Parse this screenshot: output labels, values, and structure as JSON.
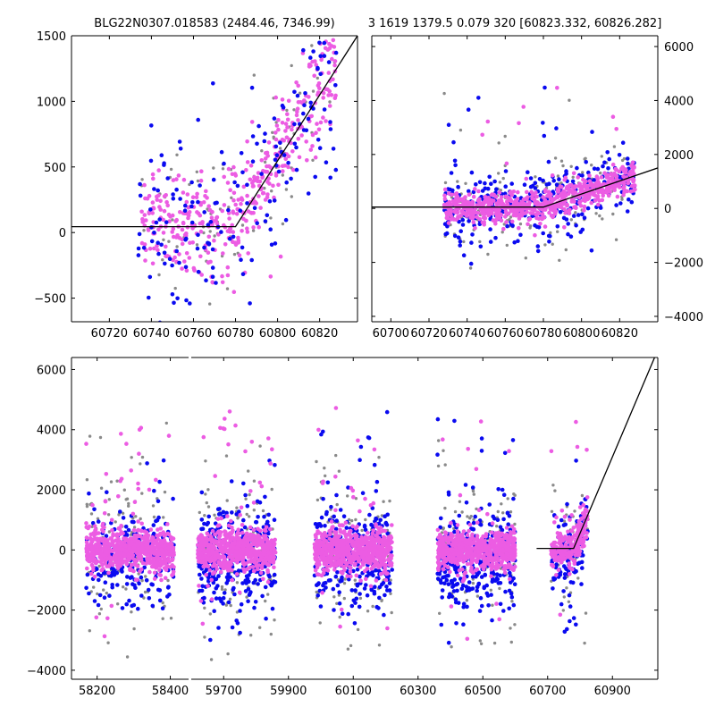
{
  "colors": {
    "series_blue": "#0a0af0",
    "series_pink": "#ec5ce3",
    "series_gray": "#8a8a8a",
    "model_line": "#000000",
    "background": "#ffffff"
  },
  "chart_data": [
    {
      "id": "top-left",
      "type": "scatter",
      "title": "BLG22N0307.018583 (2484.46, 7346.99)",
      "xlabel": "",
      "ylabel": "",
      "xlim": [
        60702,
        60838
      ],
      "ylim": [
        -680,
        1500
      ],
      "x_ticks": [
        60720,
        60740,
        60760,
        60780,
        60800,
        60820
      ],
      "y_ticks": [
        -500,
        0,
        500,
        1000,
        1500
      ],
      "y_axis_side": "left",
      "grid": false,
      "series": [
        {
          "color": "series_gray",
          "x_range": [
            60735,
            60828
          ],
          "y_spread": 300,
          "count": 90
        },
        {
          "color": "series_pink",
          "x_range": [
            60735,
            60828
          ],
          "y_spread": 200,
          "count": 420
        },
        {
          "color": "series_blue",
          "x_range": [
            60733,
            60828
          ],
          "y_spread": 380,
          "count": 170
        }
      ],
      "model_line": {
        "x": [
          60702,
          60780,
          60838
        ],
        "y": [
          45,
          45,
          1500
        ]
      }
    },
    {
      "id": "top-right",
      "type": "scatter",
      "title": "3 1619 1379.5 0.079 320 [60823.332, 60826.282]",
      "xlabel": "",
      "ylabel": "",
      "xlim": [
        60690,
        60840
      ],
      "ylim": [
        -4200,
        6400
      ],
      "x_ticks": [
        60700,
        60720,
        60740,
        60760,
        60780,
        60800,
        60820
      ],
      "y_ticks": [
        -4000,
        -2000,
        0,
        2000,
        4000,
        6000
      ],
      "y_axis_side": "right",
      "grid": false,
      "series": [
        {
          "color": "series_gray",
          "x_range": [
            60728,
            60828
          ],
          "y_spread": 900,
          "count": 140
        },
        {
          "color": "series_blue",
          "x_range": [
            60728,
            60828
          ],
          "y_spread": 700,
          "count": 330
        },
        {
          "color": "series_pink",
          "x_range": [
            60728,
            60828
          ],
          "y_spread": 280,
          "count": 700
        }
      ],
      "model_line": {
        "x": [
          60690,
          60780,
          60840
        ],
        "y": [
          50,
          50,
          1500
        ]
      }
    },
    {
      "id": "bottom",
      "type": "scatter",
      "title": "",
      "xlabel": "",
      "ylabel": "",
      "y_ticks": [
        -4000,
        -2000,
        0,
        2000,
        4000,
        6000
      ],
      "ylim": [
        -4300,
        6400
      ],
      "grid": false,
      "segments": [
        {
          "xlim": [
            58130,
            58450
          ],
          "x_ticks": [
            58200,
            58400
          ],
          "seasons": [
            [
              58170,
              58410
            ]
          ]
        },
        {
          "xlim": [
            59600,
            61040
          ],
          "x_ticks": [
            59700,
            59900,
            60100,
            60300,
            60500,
            60700,
            60900
          ],
          "seasons": [
            [
              59620,
              59860
            ],
            [
              59980,
              60220
            ],
            [
              60360,
              60600
            ],
            [
              60710,
              60825
            ]
          ]
        }
      ],
      "series": [
        {
          "color": "series_gray",
          "y_spread": 1300
        },
        {
          "color": "series_blue",
          "y_spread": 800
        },
        {
          "color": "series_pink",
          "y_spread": 330
        }
      ],
      "model_line": {
        "x": [
          60666,
          60780,
          61030
        ],
        "y": [
          50,
          50,
          6400
        ]
      }
    }
  ]
}
